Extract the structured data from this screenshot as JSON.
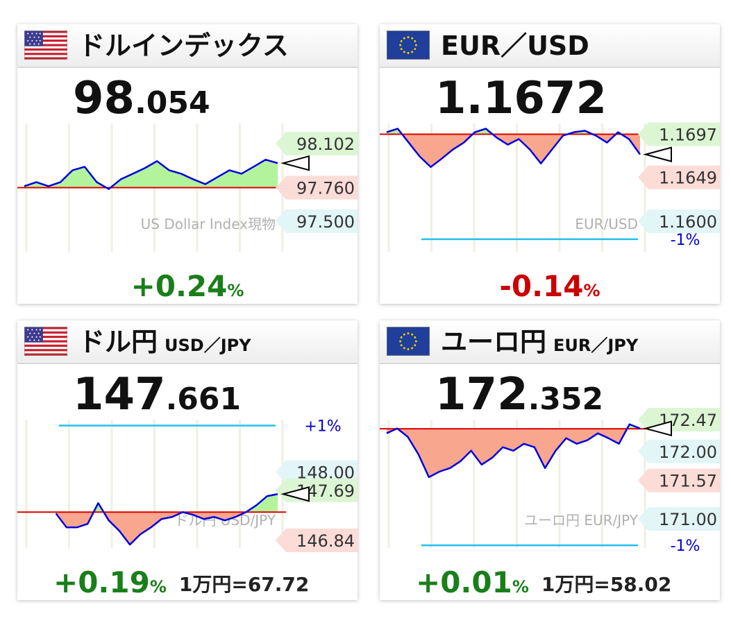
{
  "chart_data": [
    {
      "type": "line",
      "flag": "us",
      "title": "ドルインデックス",
      "price_main": "98",
      "price_decimals": ".054",
      "change": "+0.24",
      "change_unit": "%",
      "change_color": "#1a7f1a",
      "color": "#0000dd",
      "watermark": "US Dollar Index現物",
      "ylim": [
        97.262,
        98.258
      ],
      "baseline": 97.76,
      "values": [
        97.771,
        97.803,
        97.771,
        97.803,
        97.895,
        97.922,
        97.803,
        97.749,
        97.825,
        97.868,
        97.912,
        97.966,
        97.895,
        97.868,
        97.825,
        97.787,
        97.841,
        97.895,
        97.868,
        97.922,
        97.977,
        97.95
      ],
      "tags": [
        {
          "value": 98.102,
          "label": "98.102",
          "kind": "high"
        },
        {
          "value": 97.76,
          "label": "97.760",
          "kind": "low"
        },
        {
          "value": 97.5,
          "label": "97.500",
          "kind": "level"
        }
      ]
    },
    {
      "type": "line",
      "flag": "eu",
      "title": "EUR／USD",
      "price_main": "1.1672",
      "change": "-0.14",
      "change_unit": "%",
      "change_color": "#cc0000",
      "color": "#0000dd",
      "watermark": "EUR/USD",
      "ylim": [
        1.1566,
        1.1709
      ],
      "baseline": 1.1697,
      "values": [
        1.16993,
        1.17032,
        1.16877,
        1.16722,
        1.16605,
        1.16698,
        1.16799,
        1.16877,
        1.16993,
        1.17032,
        1.16931,
        1.16854,
        1.16916,
        1.16799,
        1.16644,
        1.16799,
        1.16954,
        1.16993,
        1.17009,
        1.16954,
        1.16877,
        1.16993,
        1.16916,
        1.16745
      ],
      "tags": [
        {
          "value": 1.1697,
          "label": "1.1697",
          "kind": "high"
        },
        {
          "value": 1.1649,
          "label": "1.1649",
          "kind": "low"
        },
        {
          "value": 1.16,
          "label": "1.1600",
          "kind": "level"
        }
      ],
      "ref_lines": [
        {
          "value": 1.158,
          "label": "-1%"
        }
      ]
    },
    {
      "type": "line",
      "flag": "us",
      "title": "ドル円",
      "subtitle": "USD／JPY",
      "price_main": "147",
      "price_decimals": ".661",
      "change": "+0.19",
      "change_unit": "%",
      "change_color": "#1a7f1a",
      "footnote": "1万円=67.72",
      "color": "#0000dd",
      "watermark": "ドル円 USD/JPY",
      "ylim": [
        146.71,
        148.89
      ],
      "baseline": 147.32,
      "values": [
        null,
        null,
        null,
        147.296,
        147.061,
        147.061,
        147.12,
        147.473,
        147.179,
        147.002,
        146.767,
        146.944,
        147.061,
        147.202,
        147.237,
        147.32,
        147.273,
        147.202,
        147.237,
        147.179,
        147.237,
        147.32,
        147.438,
        147.591,
        147.626
      ],
      "tags": [
        {
          "value": 148,
          "label": "148.00",
          "kind": "level"
        },
        {
          "value": 147.69,
          "label": "147.69",
          "kind": "high"
        },
        {
          "value": 146.84,
          "label": "146.84",
          "kind": "low"
        }
      ],
      "ref_lines": [
        {
          "value": 148.79,
          "label": "+1%"
        }
      ]
    },
    {
      "type": "line",
      "flag": "eu",
      "title": "ユーロ円",
      "subtitle": "EUR／JPY",
      "price_main": "172",
      "price_decimals": ".352",
      "change": "+0.01",
      "change_unit": "%",
      "change_color": "#1a7f1a",
      "footnote": "1万円=58.02",
      "color": "#0000dd",
      "watermark": "ユーロ円 EUR/JPY",
      "ylim": [
        170.57,
        172.47
      ],
      "baseline": 172.335,
      "values": [
        172.268,
        172.34,
        172.216,
        171.959,
        171.619,
        171.701,
        171.753,
        171.856,
        172.01,
        171.804,
        171.907,
        172.062,
        172.01,
        172.113,
        172.062,
        171.753,
        172.01,
        172.196,
        172.113,
        172.165,
        172.268,
        172.196,
        172.113,
        172.402,
        172.34
      ],
      "tags": [
        {
          "value": 172.47,
          "label": "172.47",
          "kind": "high"
        },
        {
          "value": 172,
          "label": "172.00",
          "kind": "level"
        },
        {
          "value": 171.57,
          "label": "171.57",
          "kind": "low"
        },
        {
          "value": 171,
          "label": "171.00",
          "kind": "level"
        }
      ],
      "ref_lines": [
        {
          "value": 170.61,
          "label": "-1%"
        }
      ]
    }
  ]
}
